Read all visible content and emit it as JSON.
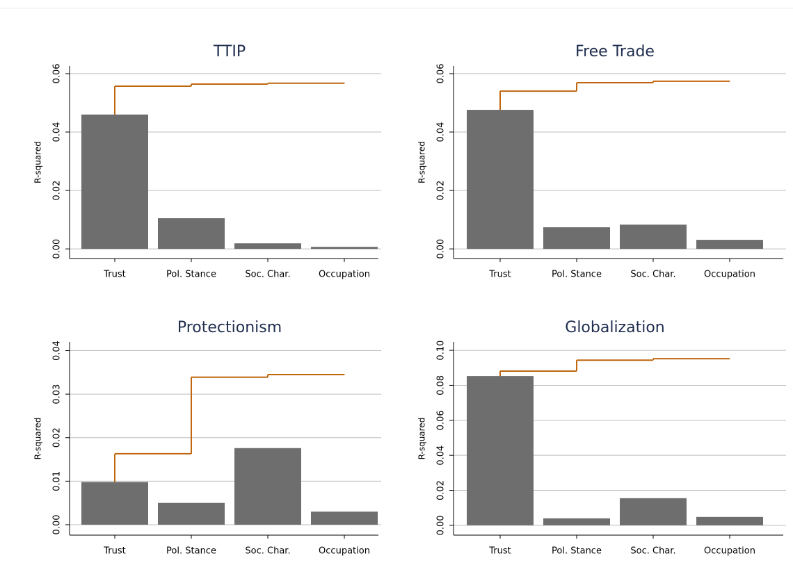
{
  "chart_data": [
    {
      "type": "bar",
      "title": "TTIP",
      "ylabel": "R-squared",
      "categories": [
        "Trust",
        "Pol. Stance",
        "Soc. Char.",
        "Occupation"
      ],
      "values": [
        0.046,
        0.0105,
        0.0019,
        0.0007
      ],
      "color": "#6e6e6e",
      "step_values": [
        0.0557,
        0.0564,
        0.0567,
        0.0569
      ],
      "step_color": "#c0660f",
      "ylim": [
        -0.0033,
        0.0626
      ],
      "yticks": [
        {
          "value": 0,
          "label": "0.00"
        },
        {
          "value": 0.02,
          "label": "0.02"
        },
        {
          "value": 0.04,
          "label": "0.04"
        },
        {
          "value": 0.06,
          "label": "0.06"
        }
      ],
      "grid": true
    },
    {
      "type": "bar",
      "title": "Free Trade",
      "ylabel": "R-squared",
      "categories": [
        "Trust",
        "Pol. Stance",
        "Soc. Char.",
        "Occupation"
      ],
      "values": [
        0.0476,
        0.0074,
        0.0083,
        0.0031
      ],
      "color": "#6e6e6e",
      "step_values": [
        0.054,
        0.0569,
        0.0574,
        0.0575
      ],
      "step_color": "#c0660f",
      "ylim": [
        -0.0033,
        0.0626
      ],
      "yticks": [
        {
          "value": 0,
          "label": "0.00"
        },
        {
          "value": 0.02,
          "label": "0.02"
        },
        {
          "value": 0.04,
          "label": "0.04"
        },
        {
          "value": 0.06,
          "label": "0.06"
        }
      ],
      "grid": true
    },
    {
      "type": "bar",
      "title": "Protectionism",
      "ylabel": "R-squared",
      "categories": [
        "Trust",
        "Pol. Stance",
        "Soc. Char.",
        "Occupation"
      ],
      "values": [
        0.0098,
        0.005,
        0.0176,
        0.003
      ],
      "color": "#6e6e6e",
      "step_values": [
        0.0163,
        0.0339,
        0.0345,
        0.0346
      ],
      "step_color": "#c0660f",
      "ylim": [
        -0.0024,
        0.042
      ],
      "yticks": [
        {
          "value": 0,
          "label": "0.00"
        },
        {
          "value": 0.01,
          "label": "0.01"
        },
        {
          "value": 0.02,
          "label": "0.02"
        },
        {
          "value": 0.03,
          "label": "0.03"
        },
        {
          "value": 0.04,
          "label": "0.04"
        }
      ],
      "grid": true
    },
    {
      "type": "bar",
      "title": "Globalization",
      "ylabel": "R-squared",
      "categories": [
        "Trust",
        "Pol. Stance",
        "Soc. Char.",
        "Occupation"
      ],
      "values": [
        0.0853,
        0.004,
        0.0155,
        0.0048
      ],
      "color": "#6e6e6e",
      "step_values": [
        0.0881,
        0.0944,
        0.0952,
        0.0953
      ],
      "step_color": "#c0660f",
      "ylim": [
        -0.0056,
        0.1048
      ],
      "yticks": [
        {
          "value": 0,
          "label": "0.00"
        },
        {
          "value": 0.02,
          "label": "0.02"
        },
        {
          "value": 0.04,
          "label": "0.04"
        },
        {
          "value": 0.06,
          "label": "0.06"
        },
        {
          "value": 0.08,
          "label": "0.08"
        },
        {
          "value": 0.1,
          "label": "0.10"
        }
      ],
      "grid": true
    }
  ]
}
